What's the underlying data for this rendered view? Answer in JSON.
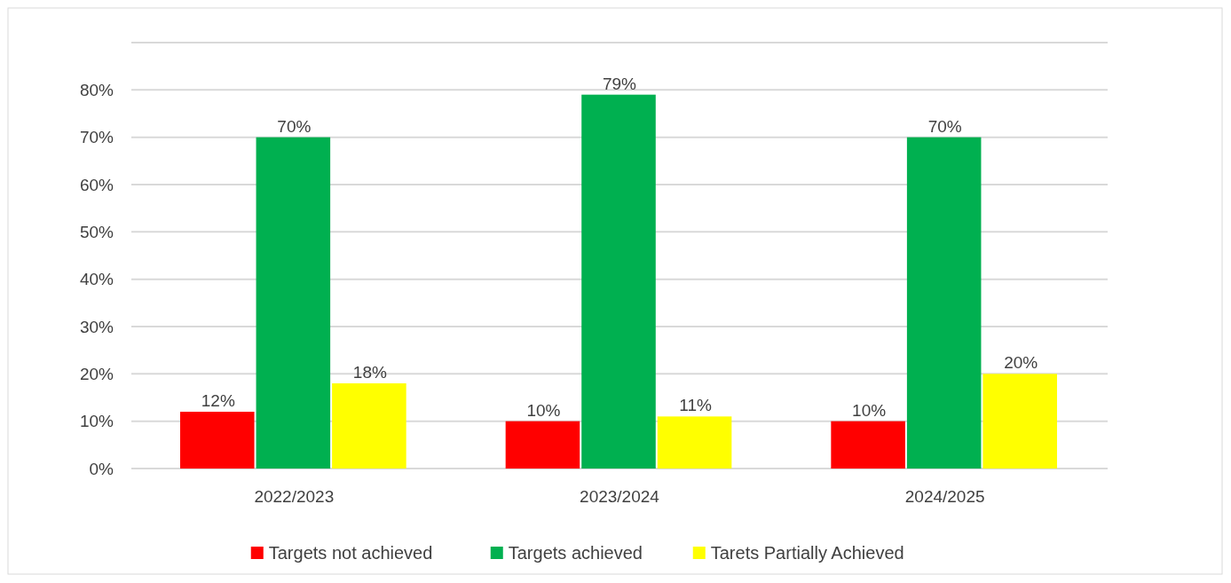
{
  "chart_data": {
    "type": "bar",
    "categories": [
      "2022/2023",
      "2023/2024",
      "2024/2025"
    ],
    "series": [
      {
        "name": "Targets not achieved",
        "color": "#ff0000",
        "values": [
          12,
          10,
          10
        ],
        "value_labels": [
          "12%",
          "10%",
          "10%"
        ]
      },
      {
        "name": "Targets achieved",
        "color": "#00b050",
        "values": [
          70,
          79,
          70
        ],
        "value_labels": [
          "70%",
          "79%",
          "70%"
        ]
      },
      {
        "name": "Tarets Partially Achieved",
        "color": "#ffff00",
        "values": [
          18,
          11,
          20
        ],
        "value_labels": [
          "18%",
          "11%",
          "20%"
        ]
      }
    ],
    "ylim": [
      0,
      90
    ],
    "yticks": [
      {
        "value": 0,
        "label": "0%"
      },
      {
        "value": 10,
        "label": "10%"
      },
      {
        "value": 20,
        "label": "20%"
      },
      {
        "value": 30,
        "label": "30%"
      },
      {
        "value": 40,
        "label": "40%"
      },
      {
        "value": 50,
        "label": "50%"
      },
      {
        "value": 60,
        "label": "60%"
      },
      {
        "value": 70,
        "label": "70%"
      },
      {
        "value": 80,
        "label": "80%"
      },
      {
        "value": 90,
        "label": null
      }
    ],
    "grid": "y",
    "legend": "bottom"
  }
}
